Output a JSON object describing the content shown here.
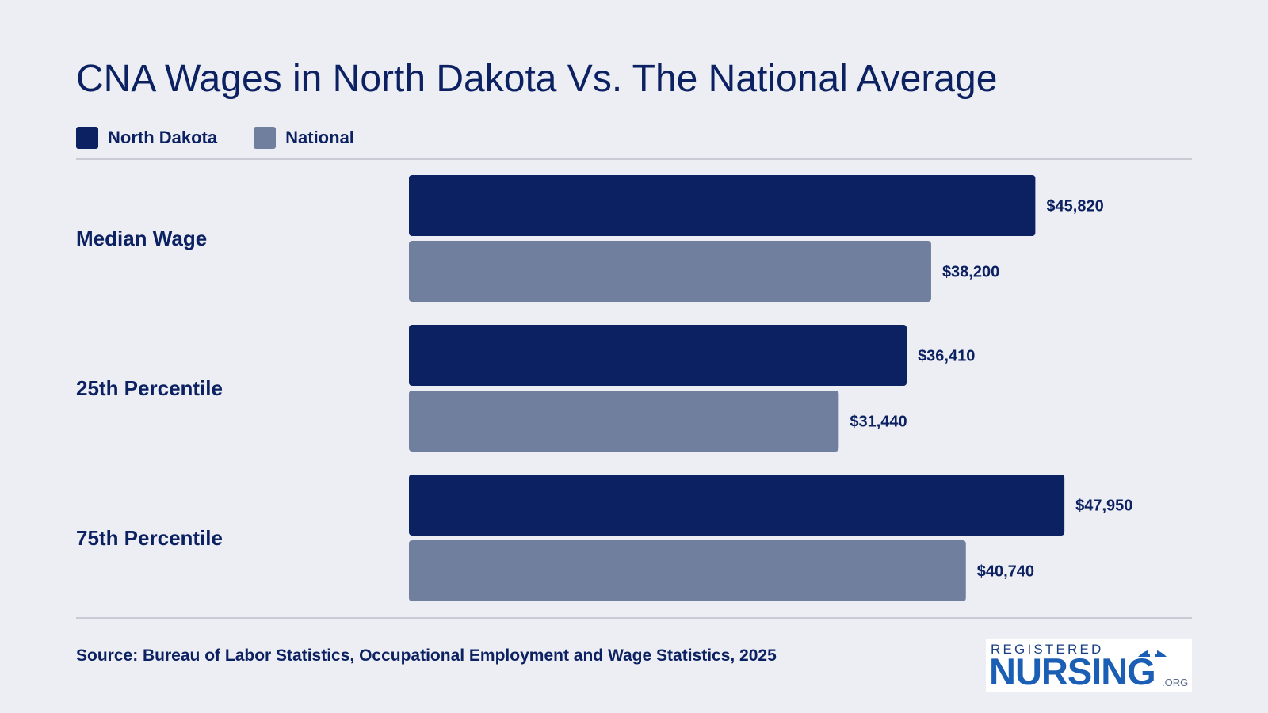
{
  "title": "CNA Wages in North Dakota Vs. The National Average",
  "legend": [
    {
      "label": "North Dakota",
      "color": "#0c2161"
    },
    {
      "label": "National",
      "color": "#717f9f"
    }
  ],
  "source": "Source: Bureau of Labor Statistics, Occupational Employment and Wage Statistics, 2025",
  "logo": {
    "line1": "REGISTERED",
    "line2": "NURSING",
    "line3": ".ORG"
  },
  "chart_data": {
    "type": "bar",
    "orientation": "horizontal",
    "categories": [
      "Median Wage",
      "25th Percentile",
      "75th Percentile"
    ],
    "series": [
      {
        "name": "North Dakota",
        "color": "#0c2161",
        "values": [
          45820,
          36410,
          47950
        ],
        "labels": [
          "$45,820",
          "$36,410",
          "$47,950"
        ]
      },
      {
        "name": "National",
        "color": "#717f9f",
        "values": [
          38200,
          31440,
          40740
        ],
        "labels": [
          "$38,200",
          "$31,440",
          "$40,740"
        ]
      }
    ],
    "xlim": [
      0,
      48000
    ],
    "grid": false,
    "legend_position": "top-left"
  }
}
